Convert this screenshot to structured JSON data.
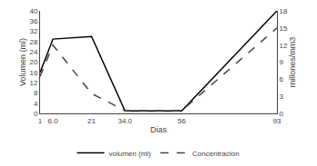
{
  "chart_data": {
    "type": "line",
    "xlabel": "Dias",
    "ylabel": "Volumen (ml)",
    "y2label": "millones/mm3",
    "x": [
      1,
      6,
      21,
      34,
      56,
      93
    ],
    "xlim": [
      1,
      93
    ],
    "xticks": [
      1,
      {
        "value": 6,
        "label": "6.0"
      },
      21,
      {
        "value": 34,
        "label": "34.0"
      },
      56,
      93
    ],
    "ylim": [
      0,
      40
    ],
    "yticks": [
      0,
      4,
      8,
      12,
      16,
      20,
      24,
      28,
      32,
      36,
      40
    ],
    "y2lim": [
      0,
      18
    ],
    "y2ticks": [
      0,
      3,
      6,
      9,
      12,
      15,
      18
    ],
    "grid": false,
    "legend": "bottom",
    "series": [
      {
        "name": "volumen (ml)",
        "color": "#000000",
        "line_style": "solid",
        "values": [
          16,
          29,
          30,
          1,
          1,
          40
        ]
      },
      {
        "name": "Concentracion",
        "color": "#444444",
        "line_style": "dashed",
        "axis": "y2",
        "values": [
          6.5,
          12,
          3.5,
          0.5,
          0.5,
          15
        ]
      }
    ]
  }
}
